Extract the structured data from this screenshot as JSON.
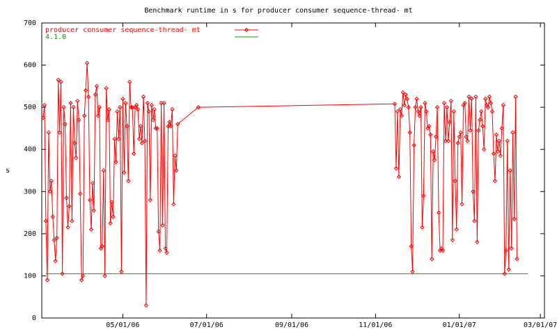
{
  "chart_data": {
    "type": "line",
    "title": "Benchmark runtime in s for producer consumer sequence-thread-  mt",
    "y_label": "s",
    "legend": "top-left",
    "grid": false,
    "xlim": [
      "2006-03-03",
      "2007-03-04"
    ],
    "xticks": [
      {
        "value": "2006-05-01",
        "label": "05/01/06"
      },
      {
        "value": "2006-07-01",
        "label": "07/01/06"
      },
      {
        "value": "2006-09-01",
        "label": "09/01/06"
      },
      {
        "value": "2006-11-01",
        "label": "11/01/06"
      },
      {
        "value": "2007-01-01",
        "label": "01/01/07"
      },
      {
        "value": "2007-03-01",
        "label": "03/01/07"
      }
    ],
    "ylim": [
      0,
      700
    ],
    "yticks": [
      0,
      100,
      200,
      300,
      400,
      500,
      600,
      700
    ],
    "series": [
      {
        "name": "producer consumer sequence-thread-  mt",
        "color": "#ff0000",
        "marker": "diamond",
        "x": [
          "2006-03-04",
          "2006-03-05",
          "2006-03-06",
          "2006-03-07",
          "2006-03-08",
          "2006-03-09",
          "2006-03-10",
          "2006-03-11",
          "2006-03-12",
          "2006-03-13",
          "2006-03-14",
          "2006-03-15",
          "2006-03-16",
          "2006-03-17",
          "2006-03-18",
          "2006-03-19",
          "2006-03-20",
          "2006-03-21",
          "2006-03-22",
          "2006-03-23",
          "2006-03-24",
          "2006-03-25",
          "2006-03-26",
          "2006-03-27",
          "2006-03-28",
          "2006-03-29",
          "2006-03-30",
          "2006-03-31",
          "2006-04-01",
          "2006-04-02",
          "2006-04-03",
          "2006-04-04",
          "2006-04-05",
          "2006-04-06",
          "2006-04-07",
          "2006-04-08",
          "2006-04-09",
          "2006-04-10",
          "2006-04-11",
          "2006-04-12",
          "2006-04-13",
          "2006-04-14",
          "2006-04-15",
          "2006-04-16",
          "2006-04-17",
          "2006-04-18",
          "2006-04-19",
          "2006-04-20",
          "2006-04-21",
          "2006-04-22",
          "2006-04-23",
          "2006-04-24",
          "2006-04-25",
          "2006-04-26",
          "2006-04-27",
          "2006-04-28",
          "2006-04-29",
          "2006-04-30",
          "2006-05-01",
          "2006-05-02",
          "2006-05-03",
          "2006-05-04",
          "2006-05-05",
          "2006-05-06",
          "2006-05-07",
          "2006-05-08",
          "2006-05-09",
          "2006-05-10",
          "2006-05-11",
          "2006-05-12",
          "2006-05-13",
          "2006-05-14",
          "2006-05-15",
          "2006-05-16",
          "2006-05-17",
          "2006-05-18",
          "2006-05-19",
          "2006-05-20",
          "2006-05-21",
          "2006-05-22",
          "2006-05-23",
          "2006-05-24",
          "2006-05-25",
          "2006-05-26",
          "2006-05-27",
          "2006-05-28",
          "2006-05-29",
          "2006-05-30",
          "2006-05-31",
          "2006-06-01",
          "2006-06-02",
          "2006-06-03",
          "2006-06-04",
          "2006-06-05",
          "2006-06-06",
          "2006-06-07",
          "2006-06-08",
          "2006-06-09",
          "2006-06-10",
          "2006-06-25",
          "2006-11-15",
          "2006-11-16",
          "2006-11-17",
          "2006-11-18",
          "2006-11-19",
          "2006-11-20",
          "2006-11-21",
          "2006-11-22",
          "2006-11-23",
          "2006-11-24",
          "2006-11-25",
          "2006-11-26",
          "2006-11-27",
          "2006-11-28",
          "2006-11-29",
          "2006-11-30",
          "2006-12-01",
          "2006-12-02",
          "2006-12-03",
          "2006-12-04",
          "2006-12-05",
          "2006-12-06",
          "2006-12-07",
          "2006-12-08",
          "2006-12-09",
          "2006-12-10",
          "2006-12-11",
          "2006-12-12",
          "2006-12-13",
          "2006-12-14",
          "2006-12-15",
          "2006-12-16",
          "2006-12-17",
          "2006-12-18",
          "2006-12-19",
          "2006-12-20",
          "2006-12-21",
          "2006-12-22",
          "2006-12-23",
          "2006-12-24",
          "2006-12-25",
          "2006-12-26",
          "2006-12-27",
          "2006-12-28",
          "2006-12-29",
          "2006-12-30",
          "2006-12-31",
          "2007-01-01",
          "2007-01-02",
          "2007-01-03",
          "2007-01-04",
          "2007-01-05",
          "2007-01-06",
          "2007-01-07",
          "2007-01-08",
          "2007-01-09",
          "2007-01-10",
          "2007-01-11",
          "2007-01-12",
          "2007-01-13",
          "2007-01-14",
          "2007-01-15",
          "2007-01-16",
          "2007-01-17",
          "2007-01-18",
          "2007-01-19",
          "2007-01-20",
          "2007-01-21",
          "2007-01-22",
          "2007-01-23",
          "2007-01-24",
          "2007-01-25",
          "2007-01-26",
          "2007-01-27",
          "2007-01-28",
          "2007-01-29",
          "2007-01-30",
          "2007-01-31",
          "2007-02-01",
          "2007-02-02",
          "2007-02-03",
          "2007-02-04",
          "2007-02-05",
          "2007-02-06",
          "2007-02-07",
          "2007-02-08",
          "2007-02-09",
          "2007-02-10",
          "2007-02-11",
          "2007-02-12"
        ],
        "values": [
          475,
          505,
          230,
          90,
          440,
          300,
          325,
          240,
          185,
          135,
          190,
          565,
          440,
          560,
          105,
          500,
          460,
          285,
          215,
          265,
          510,
          230,
          500,
          415,
          380,
          515,
          470,
          295,
          90,
          100,
          480,
          540,
          605,
          525,
          280,
          210,
          320,
          255,
          530,
          550,
          480,
          500,
          165,
          170,
          350,
          100,
          545,
          470,
          495,
          225,
          275,
          240,
          425,
          370,
          490,
          425,
          500,
          110,
          520,
          345,
          510,
          455,
          325,
          560,
          500,
          500,
          390,
          500,
          505,
          495,
          425,
          455,
          415,
          525,
          420,
          30,
          510,
          490,
          280,
          505,
          470,
          495,
          450,
          450,
          205,
          160,
          510,
          220,
          510,
          165,
          155,
          455,
          465,
          455,
          495,
          270,
          385,
          350,
          460,
          500,
          508,
          355,
          490,
          335,
          495,
          480,
          535,
          505,
          530,
          520,
          500,
          440,
          170,
          110,
          410,
          500,
          520,
          490,
          480,
          500,
          215,
          290,
          510,
          490,
          450,
          455,
          435,
          140,
          395,
          375,
          430,
          500,
          250,
          160,
          165,
          160,
          510,
          420,
          500,
          420,
          465,
          515,
          185,
          490,
          325,
          210,
          415,
          430,
          440,
          270,
          505,
          510,
          430,
          420,
          525,
          445,
          520,
          300,
          230,
          525,
          180,
          445,
          470,
          490,
          455,
          400,
          520,
          505,
          500,
          525,
          510,
          490,
          390,
          325,
          435,
          395,
          420,
          385,
          450,
          505,
          105,
          160,
          420,
          115,
          350,
          165,
          440,
          235,
          525,
          140
        ]
      },
      {
        "name": "4.1.0",
        "color": "#00a000",
        "x": [
          "2006-03-06",
          "2007-02-20"
        ],
        "values": [
          105,
          105
        ]
      }
    ]
  }
}
